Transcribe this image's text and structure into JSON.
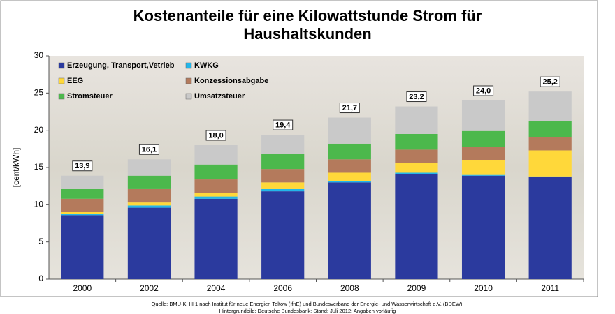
{
  "chart_data": {
    "type": "stacked-bar",
    "title": [
      "Kostenanteile für eine Kilowattstunde Strom für",
      "Haushaltskunden"
    ],
    "y_label": "[cent/kWh]",
    "categories": [
      "2000",
      "2002",
      "2004",
      "2006",
      "2008",
      "2009",
      "2010",
      "2011"
    ],
    "series": [
      {
        "name": "Erzeugung, Transport,Vetrieb",
        "color": "#2b3a9e",
        "values": [
          8.6,
          9.6,
          10.8,
          11.8,
          13.0,
          14.1,
          13.9,
          13.7
        ]
      },
      {
        "name": "KWKG",
        "color": "#22b6ea",
        "values": [
          0.2,
          0.3,
          0.3,
          0.3,
          0.2,
          0.2,
          0.1,
          0.1
        ]
      },
      {
        "name": "EEG",
        "color": "#ffd83a",
        "values": [
          0.2,
          0.4,
          0.5,
          0.9,
          1.1,
          1.3,
          2.0,
          3.5
        ]
      },
      {
        "name": "Konzessionsabgabe",
        "color": "#b47a5c",
        "values": [
          1.8,
          1.8,
          1.8,
          1.8,
          1.8,
          1.8,
          1.8,
          1.8
        ]
      },
      {
        "name": "Stromsteuer",
        "color": "#4cb84c",
        "values": [
          1.3,
          1.8,
          2.0,
          2.0,
          2.1,
          2.1,
          2.1,
          2.1
        ]
      },
      {
        "name": "Umsatzsteuer",
        "color": "#c9c9c9",
        "values": [
          1.8,
          2.2,
          2.6,
          2.6,
          3.5,
          3.7,
          4.1,
          4.0
        ]
      }
    ],
    "totals": [
      13.9,
      16.1,
      18.0,
      19.4,
      21.7,
      23.2,
      24.0,
      25.2
    ],
    "total_labels": [
      "13,9",
      "16,1",
      "18,0",
      "19,4",
      "21,7",
      "23,2",
      "24,0",
      "25,2"
    ],
    "ylim": [
      0,
      30
    ],
    "yticks": [
      0,
      5,
      10,
      15,
      20,
      25,
      30
    ],
    "legend": "upper left",
    "source": [
      "Quelle: BMU-KI III 1 nach Institut für neue Energien Teltow (IfnE) und Bundesverband der Energie- und Wasserwirtschaft e.V. (BDEW);",
      "Hintergrundbild: Deutsche Bundesbank; Stand: Juli 2012; Angaben vorläufig"
    ]
  }
}
